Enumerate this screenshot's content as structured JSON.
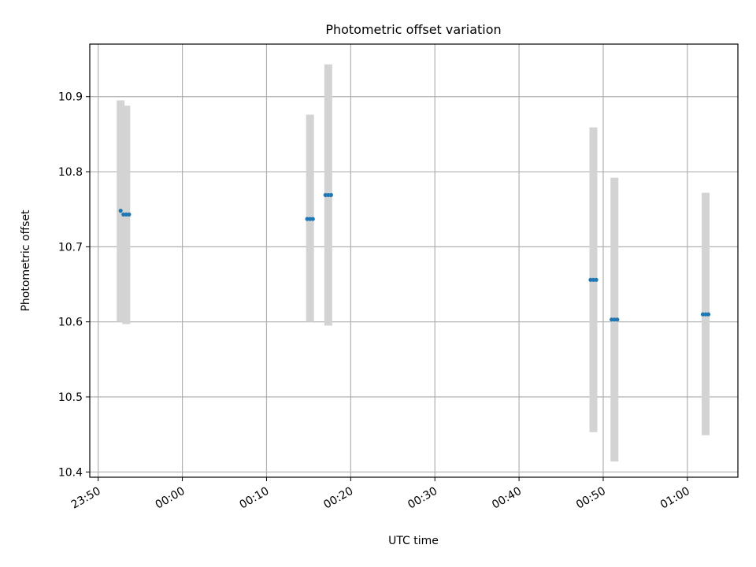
{
  "chart_data": {
    "type": "scatter",
    "title": "Photometric offset variation",
    "xlabel": "UTC time",
    "ylabel": "Photometric offset",
    "xlim": [
      "23:49",
      "01:06"
    ],
    "ylim": [
      10.393,
      10.97
    ],
    "x_ticks": [
      "23:50",
      "00:00",
      "00:10",
      "00:20",
      "00:30",
      "00:40",
      "00:50",
      "01:00"
    ],
    "y_ticks": [
      10.4,
      10.5,
      10.6,
      10.7,
      10.8,
      10.9
    ],
    "grid": true,
    "colors": {
      "points": "#1f77b4",
      "error_band": "#d3d3d3",
      "grid": "#b0b0b0"
    },
    "series": [
      {
        "points": [
          {
            "x": "23:52:40",
            "y": 10.748
          },
          {
            "x": "23:53:00",
            "y": 10.743
          },
          {
            "x": "23:53:20",
            "y": 10.743
          },
          {
            "x": "23:53:40",
            "y": 10.743
          },
          {
            "x": "00:14:50",
            "y": 10.737
          },
          {
            "x": "00:15:10",
            "y": 10.737
          },
          {
            "x": "00:15:30",
            "y": 10.737
          },
          {
            "x": "00:17:00",
            "y": 10.769
          },
          {
            "x": "00:17:20",
            "y": 10.769
          },
          {
            "x": "00:17:40",
            "y": 10.769
          },
          {
            "x": "00:48:30",
            "y": 10.656
          },
          {
            "x": "00:48:50",
            "y": 10.656
          },
          {
            "x": "00:49:10",
            "y": 10.656
          },
          {
            "x": "00:51:00",
            "y": 10.603
          },
          {
            "x": "00:51:20",
            "y": 10.603
          },
          {
            "x": "00:51:40",
            "y": 10.603
          },
          {
            "x": "01:01:50",
            "y": 10.61
          },
          {
            "x": "01:02:10",
            "y": 10.61
          },
          {
            "x": "01:02:30",
            "y": 10.61
          }
        ],
        "error_bands": [
          {
            "x": "23:52:40",
            "low": 10.6,
            "high": 10.895
          },
          {
            "x": "23:53:20",
            "low": 10.597,
            "high": 10.888
          },
          {
            "x": "00:15:10",
            "low": 10.6,
            "high": 10.876
          },
          {
            "x": "00:17:20",
            "low": 10.595,
            "high": 10.943
          },
          {
            "x": "00:48:50",
            "low": 10.453,
            "high": 10.859
          },
          {
            "x": "00:51:20",
            "low": 10.414,
            "high": 10.792
          },
          {
            "x": "01:02:10",
            "low": 10.449,
            "high": 10.772
          }
        ]
      }
    ]
  }
}
